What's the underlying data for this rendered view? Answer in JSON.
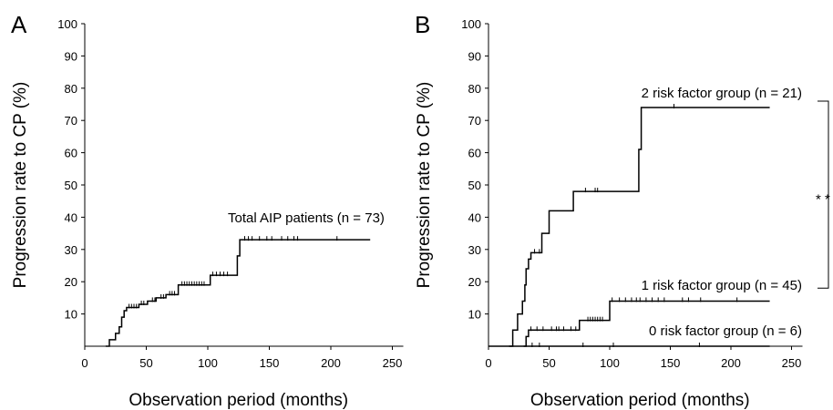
{
  "chart_data": [
    {
      "type": "line",
      "panel_label": "A",
      "xlabel": "Observation period  (months)",
      "ylabel": "Progression rate to CP  (%)",
      "xlim": [
        0,
        250
      ],
      "ylim": [
        0,
        100
      ],
      "x_ticks": [
        0,
        50,
        100,
        150,
        200,
        250
      ],
      "y_ticks": [
        10,
        20,
        30,
        40,
        50,
        60,
        70,
        80,
        90,
        100
      ],
      "grid": false,
      "series": [
        {
          "name": "Total AIP patients (n = 73)",
          "step_x": [
            17,
            20,
            25,
            28,
            30,
            32,
            34,
            44,
            51,
            58,
            66,
            76,
            102,
            124,
            126,
            232
          ],
          "step_y": [
            0,
            2,
            4,
            6,
            9,
            11,
            12,
            13,
            14,
            15,
            16,
            19,
            22,
            28,
            33,
            33
          ],
          "censored_x": [
            36,
            38,
            40,
            42,
            46,
            48,
            55,
            57,
            62,
            64,
            69,
            71,
            73,
            79,
            81,
            83,
            85,
            87,
            89,
            91,
            93,
            95,
            97,
            104,
            107,
            110,
            113,
            116,
            130,
            133,
            136,
            142,
            148,
            152,
            160,
            165,
            170,
            173,
            205
          ]
        }
      ]
    },
    {
      "type": "line",
      "panel_label": "B",
      "xlabel": "Observation period  (months)",
      "ylabel": "Progression rate to CP  (%)",
      "xlim": [
        0,
        250
      ],
      "ylim": [
        0,
        100
      ],
      "x_ticks": [
        0,
        50,
        100,
        150,
        200,
        250
      ],
      "y_ticks": [
        10,
        20,
        30,
        40,
        50,
        60,
        70,
        80,
        90,
        100
      ],
      "grid": false,
      "series": [
        {
          "name": "2 risk factor group (n = 21)",
          "step_x": [
            17,
            20,
            24,
            28,
            30,
            31,
            33,
            35,
            36,
            44,
            50,
            58,
            70,
            90,
            124,
            126,
            232
          ],
          "step_y": [
            0,
            5,
            10,
            14,
            19,
            24,
            27,
            29,
            29,
            35,
            42,
            42,
            48,
            48,
            61,
            74,
            74
          ],
          "censored_x": [
            38,
            42,
            80,
            88,
            90,
            153
          ]
        },
        {
          "name": "1 risk factor group (n = 45)",
          "step_x": [
            29,
            31,
            33,
            50,
            75,
            80,
            100,
            232
          ],
          "step_y": [
            0,
            3,
            5,
            5,
            8,
            8,
            14,
            14
          ],
          "censored_x": [
            35,
            40,
            45,
            52,
            56,
            58,
            62,
            68,
            72,
            82,
            84,
            86,
            88,
            90,
            92,
            94,
            102,
            108,
            113,
            118,
            122,
            125,
            130,
            135,
            140,
            145,
            160,
            165,
            175,
            205
          ]
        },
        {
          "name": "0 risk factor group (n = 6)",
          "step_x": [
            0,
            232
          ],
          "step_y": [
            0,
            0
          ],
          "censored_x": [
            36,
            42,
            78,
            103,
            174
          ]
        }
      ],
      "annotations": [
        {
          "text": "* *",
          "meaning": "significance bracket between 2 and 1 risk factor groups"
        }
      ]
    }
  ]
}
